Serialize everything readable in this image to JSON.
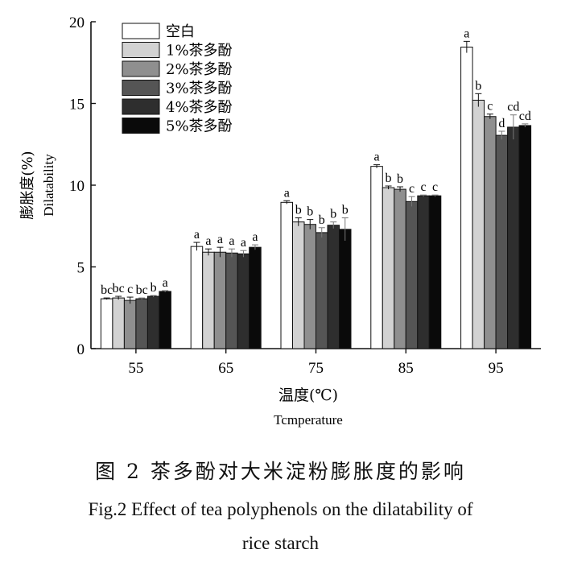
{
  "chart_data": {
    "type": "bar",
    "categories": [
      "55",
      "65",
      "75",
      "85",
      "95"
    ],
    "series": [
      {
        "name": "空白",
        "values": [
          3.05,
          6.25,
          8.95,
          11.15,
          18.45
        ],
        "errors": [
          0.05,
          0.25,
          0.1,
          0.1,
          0.35
        ],
        "letters": [
          "bc",
          "a",
          "a",
          "a",
          "a"
        ],
        "color": "#ffffff"
      },
      {
        "name": "1%茶多酚",
        "values": [
          3.1,
          5.9,
          7.75,
          9.85,
          15.2
        ],
        "errors": [
          0.1,
          0.2,
          0.25,
          0.1,
          0.4
        ],
        "letters": [
          "bc",
          "a",
          "b",
          "b",
          "b"
        ],
        "color": "#d2d2d2"
      },
      {
        "name": "2%茶多酚",
        "values": [
          2.95,
          5.9,
          7.6,
          9.75,
          14.2
        ],
        "errors": [
          0.2,
          0.3,
          0.3,
          0.15,
          0.15
        ],
        "letters": [
          "c",
          "a",
          "b",
          "b",
          "c"
        ],
        "color": "#8f8f8f"
      },
      {
        "name": "3%茶多酚",
        "values": [
          3.05,
          5.85,
          7.1,
          9.0,
          13.05
        ],
        "errors": [
          0.05,
          0.25,
          0.3,
          0.3,
          0.25
        ],
        "letters": [
          "bc",
          "a",
          "b",
          "c",
          "d"
        ],
        "color": "#555555"
      },
      {
        "name": "4%茶多酚",
        "values": [
          3.2,
          5.8,
          7.55,
          9.35,
          13.55
        ],
        "errors": [
          0.05,
          0.2,
          0.2,
          0.05,
          0.75
        ],
        "letters": [
          "b",
          "a",
          "b",
          "c",
          "cd"
        ],
        "color": "#2e2e2e"
      },
      {
        "name": "5%茶多酚",
        "values": [
          3.5,
          6.2,
          7.3,
          9.35,
          13.65
        ],
        "errors": [
          0.05,
          0.15,
          0.7,
          0.05,
          0.1
        ],
        "letters": [
          "a",
          "a",
          "b",
          "c",
          "cd"
        ],
        "color": "#0a0a0a"
      }
    ],
    "ylim": [
      0,
      20
    ],
    "yticks": [
      0,
      5,
      10,
      15,
      20
    ],
    "ylabel_cn": "膨胀度(%)",
    "ylabel_en": "Dilatability",
    "xlabel_cn": "温度(℃)",
    "xlabel_en": "Tcmperature",
    "legend_position": "top-left",
    "grid": false
  },
  "caption": {
    "cn": "图 2  茶多酚对大米淀粉膨胀度的影响",
    "en_line1": "Fig.2 Effect of tea polyphenols on the dilatability of",
    "en_line2": "rice starch"
  }
}
